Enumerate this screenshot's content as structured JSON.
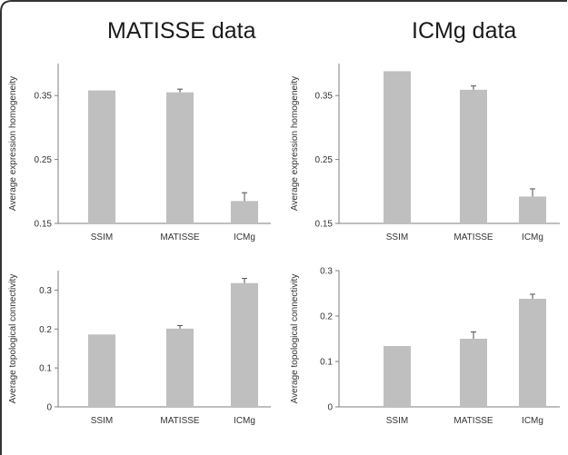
{
  "titles": {
    "left": "MATISSE data",
    "right": "ICMg data"
  },
  "colors": {
    "bar": "#bfbfbf",
    "axis": "#7f7f7f",
    "frame": "#333333"
  },
  "chart_data": [
    {
      "type": "bar",
      "title": "",
      "categories": [
        "SSIM",
        "MATISSE",
        "ICMg"
      ],
      "values": [
        0.358,
        0.355,
        0.185
      ],
      "errors": [
        0,
        0.005,
        0.013
      ],
      "ylabel": "Average expression homogeneity",
      "xlabel": "",
      "ylim": [
        0.15,
        0.4
      ],
      "yticks": [
        0.15,
        0.25,
        0.35
      ],
      "yticklabels": [
        "0.15",
        "0.25",
        "0.35"
      ]
    },
    {
      "type": "bar",
      "title": "",
      "categories": [
        "SSIM",
        "MATISSE",
        "ICMg"
      ],
      "values": [
        0.388,
        0.359,
        0.192
      ],
      "errors": [
        0,
        0.006,
        0.012
      ],
      "ylabel": "Average expression homogeneity",
      "xlabel": "",
      "ylim": [
        0.15,
        0.4
      ],
      "yticks": [
        0.15,
        0.25,
        0.35
      ],
      "yticklabels": [
        "0.15",
        "0.25",
        "0.35"
      ]
    },
    {
      "type": "bar",
      "title": "",
      "categories": [
        "SSIM",
        "MATISSE",
        "ICMg"
      ],
      "values": [
        0.186,
        0.201,
        0.318
      ],
      "errors": [
        0,
        0.008,
        0.012
      ],
      "ylabel": "Average topological connectivity",
      "xlabel": "",
      "ylim": [
        0,
        0.35
      ],
      "yticks": [
        0,
        0.1,
        0.2,
        0.3
      ],
      "yticklabels": [
        "0",
        "0.1",
        "0.2",
        "0.3"
      ]
    },
    {
      "type": "bar",
      "title": "",
      "categories": [
        "SSIM",
        "MATISSE",
        "ICMg"
      ],
      "values": [
        0.134,
        0.15,
        0.238
      ],
      "errors": [
        0,
        0.015,
        0.01
      ],
      "ylabel": "Average topological connectivity",
      "xlabel": "",
      "ylim": [
        0,
        0.3
      ],
      "yticks": [
        0,
        0.1,
        0.2,
        0.3
      ],
      "yticklabels": [
        "0",
        "0.1",
        "0.2",
        "0.3"
      ]
    }
  ]
}
